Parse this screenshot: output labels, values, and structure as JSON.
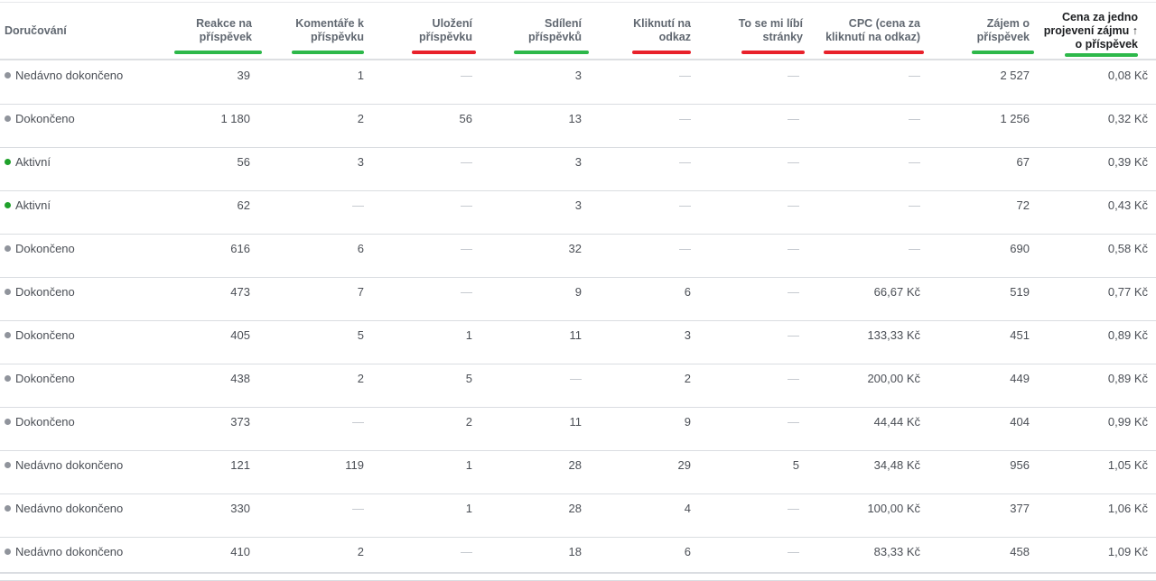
{
  "columns": [
    {
      "key": "status",
      "label": "Doručování"
    },
    {
      "key": "reactions",
      "label": "Reakce na\npříspěvek",
      "underline": "green"
    },
    {
      "key": "comments",
      "label": "Komentáře k\npříspěvku",
      "underline": "green"
    },
    {
      "key": "saves",
      "label": "Uložení\npříspěvku",
      "underline": "red"
    },
    {
      "key": "shares",
      "label": "Sdílení\npříspěvků",
      "underline": "green"
    },
    {
      "key": "link_clicks",
      "label": "Kliknutí na\nodkaz",
      "underline": "red"
    },
    {
      "key": "page_likes",
      "label": "To se mi líbí\nstránky",
      "underline": "red"
    },
    {
      "key": "cpc",
      "label": "CPC (cena za\nkliknutí na odkaz)",
      "underline": "red"
    },
    {
      "key": "engagement",
      "label": "Zájem o\npříspěvek",
      "underline": "green"
    },
    {
      "key": "cost_per_engagement",
      "label": "Cena za jedno\nprojevení zájmu ↑\no příspěvek",
      "underline": "green",
      "sorted": true,
      "sort_icon": "arrow-up-icon"
    }
  ],
  "colors": {
    "green_underline": "#2db84a",
    "red_underline": "#e8212b",
    "dot_done": "#90949c",
    "dot_active": "#1fa12b"
  },
  "rows": [
    {
      "status": "Nedávno dokončeno",
      "state": "done",
      "reactions": "39",
      "comments": "1",
      "saves": "—",
      "shares": "3",
      "link_clicks": "—",
      "page_likes": "—",
      "cpc": "—",
      "engagement": "2 527",
      "cost_per_engagement": "0,08 Kč"
    },
    {
      "status": "Dokončeno",
      "state": "done",
      "reactions": "1 180",
      "comments": "2",
      "saves": "56",
      "shares": "13",
      "link_clicks": "—",
      "page_likes": "—",
      "cpc": "—",
      "engagement": "1 256",
      "cost_per_engagement": "0,32 Kč"
    },
    {
      "status": "Aktivní",
      "state": "active",
      "reactions": "56",
      "comments": "3",
      "saves": "—",
      "shares": "3",
      "link_clicks": "—",
      "page_likes": "—",
      "cpc": "—",
      "engagement": "67",
      "cost_per_engagement": "0,39 Kč"
    },
    {
      "status": "Aktivní",
      "state": "active",
      "reactions": "62",
      "comments": "—",
      "saves": "—",
      "shares": "3",
      "link_clicks": "—",
      "page_likes": "—",
      "cpc": "—",
      "engagement": "72",
      "cost_per_engagement": "0,43 Kč"
    },
    {
      "status": "Dokončeno",
      "state": "done",
      "reactions": "616",
      "comments": "6",
      "saves": "—",
      "shares": "32",
      "link_clicks": "—",
      "page_likes": "—",
      "cpc": "—",
      "engagement": "690",
      "cost_per_engagement": "0,58 Kč"
    },
    {
      "status": "Dokončeno",
      "state": "done",
      "reactions": "473",
      "comments": "7",
      "saves": "—",
      "shares": "9",
      "link_clicks": "6",
      "page_likes": "—",
      "cpc": "66,67 Kč",
      "engagement": "519",
      "cost_per_engagement": "0,77 Kč"
    },
    {
      "status": "Dokončeno",
      "state": "done",
      "reactions": "405",
      "comments": "5",
      "saves": "1",
      "shares": "11",
      "link_clicks": "3",
      "page_likes": "—",
      "cpc": "133,33 Kč",
      "engagement": "451",
      "cost_per_engagement": "0,89 Kč"
    },
    {
      "status": "Dokončeno",
      "state": "done",
      "reactions": "438",
      "comments": "2",
      "saves": "5",
      "shares": "—",
      "link_clicks": "2",
      "page_likes": "—",
      "cpc": "200,00 Kč",
      "engagement": "449",
      "cost_per_engagement": "0,89 Kč"
    },
    {
      "status": "Dokončeno",
      "state": "done",
      "reactions": "373",
      "comments": "—",
      "saves": "2",
      "shares": "11",
      "link_clicks": "9",
      "page_likes": "—",
      "cpc": "44,44 Kč",
      "engagement": "404",
      "cost_per_engagement": "0,99 Kč"
    },
    {
      "status": "Nedávno dokončeno",
      "state": "done",
      "reactions": "121",
      "comments": "119",
      "saves": "1",
      "shares": "28",
      "link_clicks": "29",
      "page_likes": "5",
      "cpc": "34,48 Kč",
      "engagement": "956",
      "cost_per_engagement": "1,05 Kč"
    },
    {
      "status": "Nedávno dokončeno",
      "state": "done",
      "reactions": "330",
      "comments": "—",
      "saves": "1",
      "shares": "28",
      "link_clicks": "4",
      "page_likes": "—",
      "cpc": "100,00 Kč",
      "engagement": "377",
      "cost_per_engagement": "1,06 Kč"
    },
    {
      "status": "Nedávno dokončeno",
      "state": "done",
      "reactions": "410",
      "comments": "2",
      "saves": "—",
      "shares": "18",
      "link_clicks": "6",
      "page_likes": "—",
      "cpc": "83,33 Kč",
      "engagement": "458",
      "cost_per_engagement": "1,09 Kč"
    }
  ]
}
